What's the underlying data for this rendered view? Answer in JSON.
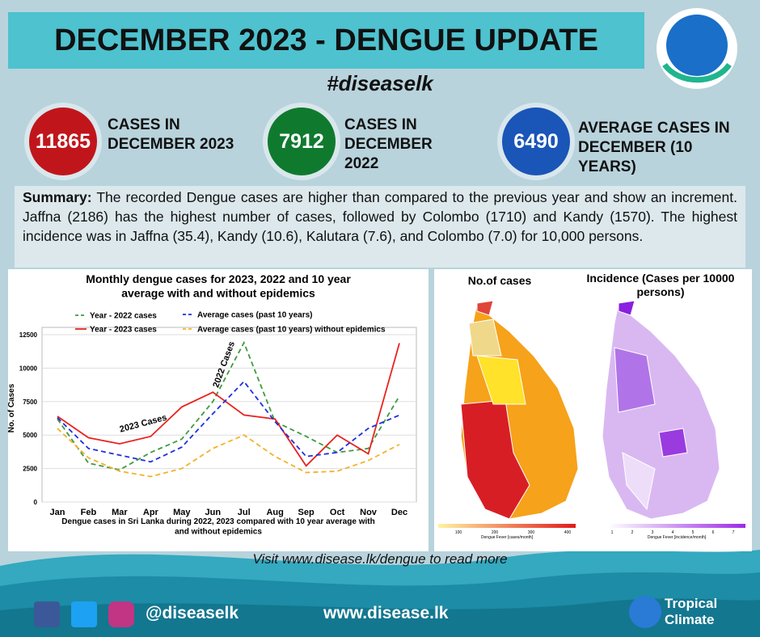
{
  "header": {
    "title": "DECEMBER 2023 - DENGUE UPDATE",
    "hashtag": "#diseaselk"
  },
  "stats": [
    {
      "value": "11865",
      "label": "CASES IN DECEMBER 2023",
      "color": "#c0161b"
    },
    {
      "value": "7912",
      "label": "CASES IN DECEMBER 2022",
      "color": "#0f7a2e"
    },
    {
      "value": "6490",
      "label": "AVERAGE CASES IN DECEMBER (10 YEARS)",
      "color": "#1a55b8"
    }
  ],
  "summary": {
    "label": "Summary:",
    "text": "The recorded Dengue cases are higher than compared to the previous year and show an increment. Jaffna (2186) has the highest number of cases, followed by Colombo (1710) and Kandy (1570). The highest incidence was in Jaffna (35.4), Kandy (10.6), Kalutara (7.6), and Colombo (7.0) for 10,000 persons."
  },
  "chart_data": {
    "type": "line",
    "title": "Monthly dengue cases for 2023, 2022 and 10 year average with and without epidemics",
    "caption": "Dengue cases in Sri Lanka during 2022, 2023 compared with 10 year average with and without epidemics",
    "y_label": "No. of Cases",
    "categories": [
      "Jan",
      "Feb",
      "Mar",
      "Apr",
      "May",
      "Jun",
      "Jul",
      "Aug",
      "Sep",
      "Oct",
      "Nov",
      "Dec"
    ],
    "series": [
      {
        "name": "Year - 2022 cases",
        "color": "#3f9b3f",
        "dashed": true,
        "values": [
          6200,
          2900,
          2400,
          3700,
          4700,
          7500,
          11900,
          6000,
          4900,
          3700,
          4000,
          7912
        ]
      },
      {
        "name": "Year - 2023 cases",
        "color": "#e8231f",
        "dashed": false,
        "values": [
          6400,
          4800,
          4350,
          4900,
          7100,
          8200,
          6500,
          6200,
          2700,
          5000,
          3600,
          11865
        ]
      },
      {
        "name": "Average cases (past 10 years)",
        "color": "#1f2fe0",
        "dashed": true,
        "values": [
          6300,
          4000,
          3500,
          3000,
          4100,
          6600,
          9000,
          6000,
          3400,
          3700,
          5500,
          6490
        ]
      },
      {
        "name": "Average cases (past 10 years) without epidemics",
        "color": "#f2b32a",
        "dashed": true,
        "values": [
          5500,
          3300,
          2300,
          1900,
          2500,
          4000,
          5000,
          3400,
          2200,
          2300,
          3100,
          4300
        ]
      }
    ],
    "annotations": [
      {
        "text": "2023 Cases"
      },
      {
        "text": "2022 Cases"
      }
    ],
    "ylim": [
      0,
      12500
    ],
    "yticks": [
      0,
      2500,
      5000,
      7500,
      10000,
      12500
    ],
    "grid": true
  },
  "maps": [
    {
      "title": "No.of cases",
      "legend_ticks": [
        "100",
        "200",
        "300",
        "400"
      ],
      "legend_caption": "Dengue Fever [cases/month]"
    },
    {
      "title": "Incidence (Cases per 10000 persons)",
      "legend_ticks": [
        "1",
        "2",
        "3",
        "4",
        "5",
        "6",
        "7"
      ],
      "legend_caption": "Dengue Fever [incidence/month]"
    }
  ],
  "footer": {
    "link_text": "Visit www.disease.lk/dengue to read more",
    "handle": "@diseaselk",
    "website": "www.disease.lk",
    "brand": "Tropical Climate"
  }
}
